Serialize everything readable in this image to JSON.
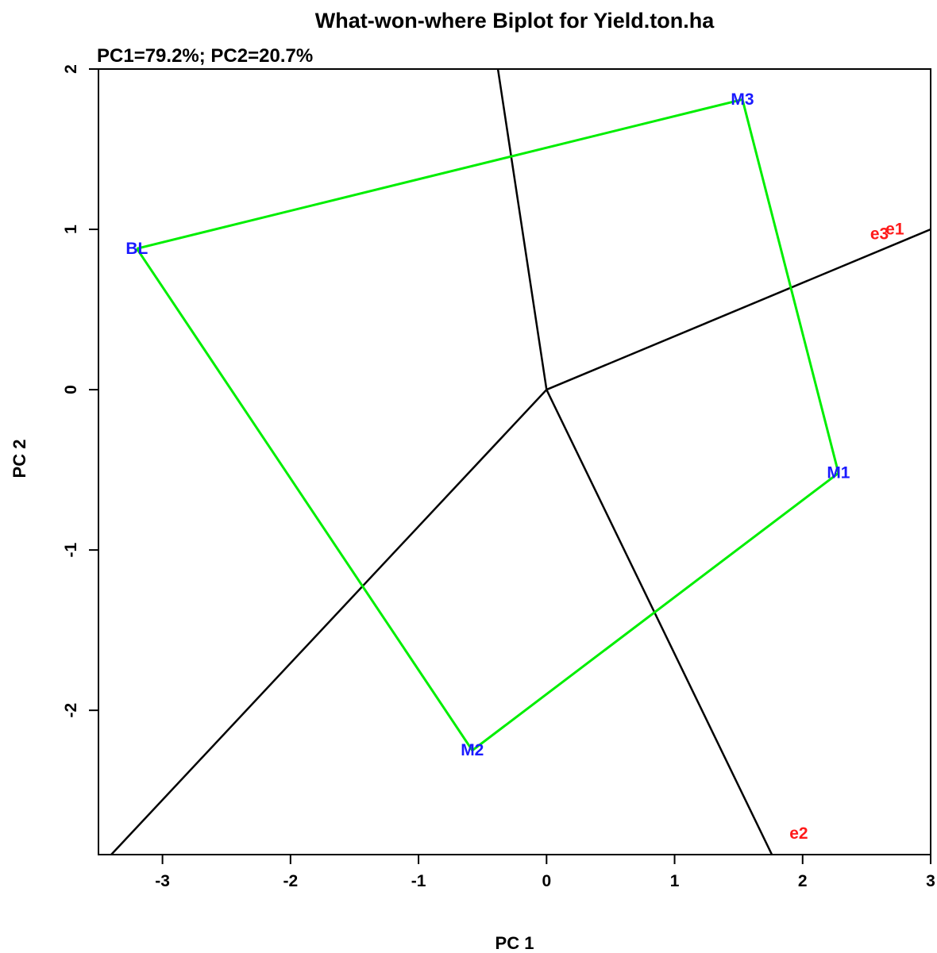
{
  "chart_data": {
    "type": "scatter",
    "title": "What-won-where Biplot for Yield.ton.ha",
    "subtitle": "PC1=79.2%; PC2=20.7%",
    "xlabel": "PC 1",
    "ylabel": "PC 2",
    "xlim": [
      -3.5,
      3.0
    ],
    "ylim": [
      -2.9,
      2.0
    ],
    "x_ticks": [
      -3,
      -2,
      -1,
      0,
      1,
      2,
      3
    ],
    "y_ticks": [
      -2,
      -1,
      0,
      1,
      2
    ],
    "grid": false,
    "genotypes": {
      "color": "#1a1aff",
      "points": [
        {
          "label": "M3",
          "x": 1.53,
          "y": 1.81
        },
        {
          "label": "BL",
          "x": -3.2,
          "y": 0.88
        },
        {
          "label": "M1",
          "x": 2.28,
          "y": -0.52
        },
        {
          "label": "M2",
          "x": -0.58,
          "y": -2.25
        }
      ]
    },
    "environments": {
      "color": "#ff1a1a",
      "points": [
        {
          "label": "e3",
          "x": 2.6,
          "y": 0.97
        },
        {
          "label": "e1",
          "x": 2.72,
          "y": 1.0
        },
        {
          "label": "e2",
          "x": 1.97,
          "y": -2.77
        }
      ]
    },
    "hull": {
      "color": "#00ee00",
      "order": [
        "BL",
        "M3",
        "M1",
        "M2",
        "BL"
      ]
    },
    "sector_lines": {
      "color": "#000000",
      "origin": [
        0,
        0
      ],
      "endpoints": [
        [
          -0.38,
          2.0
        ],
        [
          3.0,
          1.0
        ],
        [
          1.76,
          -2.9
        ],
        [
          -3.4,
          -2.9
        ]
      ]
    }
  }
}
